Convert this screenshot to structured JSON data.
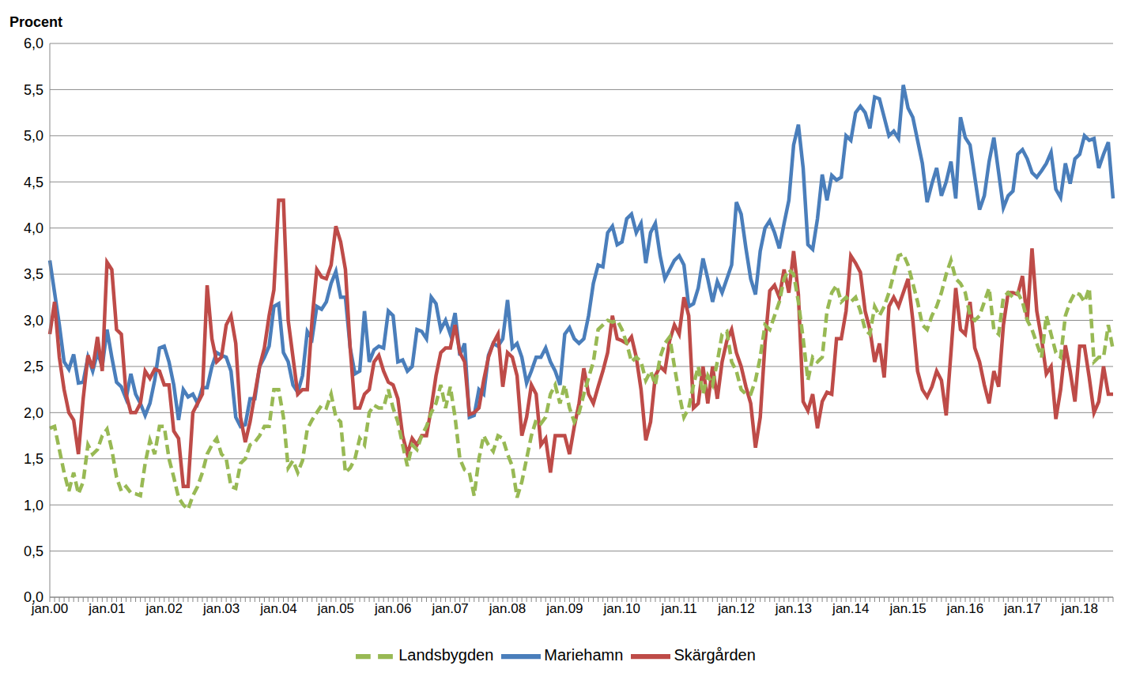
{
  "chart_data": {
    "type": "line",
    "y_label": "Procent",
    "categories": [
      "jan.00",
      null,
      null,
      null,
      null,
      null,
      null,
      null,
      null,
      null,
      null,
      null,
      "jan.01",
      null,
      null,
      null,
      null,
      null,
      null,
      null,
      null,
      null,
      null,
      null,
      "jan.02",
      null,
      null,
      null,
      null,
      null,
      null,
      null,
      null,
      null,
      null,
      null,
      "jan.03",
      null,
      null,
      null,
      null,
      null,
      null,
      null,
      null,
      null,
      null,
      null,
      "jan.04",
      null,
      null,
      null,
      null,
      null,
      null,
      null,
      null,
      null,
      null,
      null,
      "jan.05",
      null,
      null,
      null,
      null,
      null,
      null,
      null,
      null,
      null,
      null,
      null,
      "jan.06",
      null,
      null,
      null,
      null,
      null,
      null,
      null,
      null,
      null,
      null,
      null,
      "jan.07",
      null,
      null,
      null,
      null,
      null,
      null,
      null,
      null,
      null,
      null,
      null,
      "jan.08",
      null,
      null,
      null,
      null,
      null,
      null,
      null,
      null,
      null,
      null,
      null,
      "jan.09",
      null,
      null,
      null,
      null,
      null,
      null,
      null,
      null,
      null,
      null,
      null,
      "jan.10",
      null,
      null,
      null,
      null,
      null,
      null,
      null,
      null,
      null,
      null,
      null,
      "jan.11",
      null,
      null,
      null,
      null,
      null,
      null,
      null,
      null,
      null,
      null,
      null,
      "jan.12",
      null,
      null,
      null,
      null,
      null,
      null,
      null,
      null,
      null,
      null,
      null,
      "jan.13",
      null,
      null,
      null,
      null,
      null,
      null,
      null,
      null,
      null,
      null,
      null,
      "jan.14",
      null,
      null,
      null,
      null,
      null,
      null,
      null,
      null,
      null,
      null,
      null,
      "jan.15",
      null,
      null,
      null,
      null,
      null,
      null,
      null,
      null,
      null,
      null,
      null,
      "jan.16",
      null,
      null,
      null,
      null,
      null,
      null,
      null,
      null,
      null,
      null,
      null,
      "jan.17",
      null,
      null,
      null,
      null,
      null,
      null,
      null,
      null,
      null,
      null,
      null,
      "jan.18",
      null,
      null,
      null,
      null,
      null,
      null,
      null
    ],
    "series": [
      {
        "name": "Mariehamn",
        "color": "#4a7ebb",
        "line_style": "solid",
        "values": [
          3.65,
          3.3,
          2.95,
          2.55,
          2.47,
          2.63,
          2.32,
          2.33,
          2.6,
          2.45,
          2.65,
          2.5,
          2.9,
          2.6,
          2.33,
          2.28,
          2.15,
          2.42,
          2.2,
          2.1,
          1.97,
          2.1,
          2.35,
          2.7,
          2.72,
          2.55,
          2.3,
          1.92,
          2.25,
          2.17,
          2.2,
          2.1,
          2.27,
          2.27,
          2.5,
          2.65,
          2.62,
          2.6,
          2.45,
          1.95,
          1.85,
          1.87,
          2.15,
          2.15,
          2.5,
          2.6,
          2.72,
          3.15,
          3.18,
          2.65,
          2.55,
          2.3,
          2.22,
          2.4,
          2.88,
          2.8,
          3.15,
          3.12,
          3.2,
          3.4,
          3.53,
          3.25,
          3.25,
          2.7,
          2.42,
          2.45,
          3.1,
          2.55,
          2.68,
          2.72,
          2.7,
          3.1,
          3.05,
          2.55,
          2.57,
          2.45,
          2.5,
          2.9,
          2.88,
          2.8,
          3.25,
          3.18,
          2.9,
          3.0,
          2.85,
          3.08,
          2.62,
          2.75,
          1.95,
          1.97,
          2.25,
          2.2,
          2.62,
          2.75,
          2.72,
          2.8,
          3.22,
          2.7,
          2.75,
          2.6,
          2.32,
          2.45,
          2.6,
          2.6,
          2.7,
          2.55,
          2.45,
          2.3,
          2.85,
          2.92,
          2.8,
          2.75,
          2.8,
          3.05,
          3.4,
          3.6,
          3.58,
          3.95,
          4.02,
          3.82,
          3.85,
          4.1,
          4.15,
          3.95,
          4.05,
          3.62,
          3.95,
          4.05,
          3.7,
          3.45,
          3.55,
          3.65,
          3.7,
          3.6,
          3.15,
          3.18,
          3.35,
          3.67,
          3.45,
          3.2,
          3.42,
          3.3,
          3.45,
          3.6,
          4.28,
          4.15,
          3.78,
          3.45,
          3.28,
          3.75,
          4.0,
          4.08,
          3.95,
          3.78,
          4.05,
          4.3,
          4.9,
          5.12,
          4.65,
          3.82,
          3.77,
          4.1,
          4.58,
          4.3,
          4.57,
          4.52,
          4.55,
          5.0,
          4.95,
          5.25,
          5.32,
          5.25,
          5.08,
          5.42,
          5.4,
          5.2,
          5.0,
          5.05,
          4.97,
          5.55,
          5.3,
          5.2,
          4.95,
          4.7,
          4.28,
          4.48,
          4.65,
          4.35,
          4.5,
          4.72,
          4.32,
          5.2,
          4.98,
          4.9,
          4.55,
          4.2,
          4.35,
          4.72,
          4.98,
          4.6,
          4.22,
          4.35,
          4.4,
          4.8,
          4.85,
          4.75,
          4.6,
          4.55,
          4.62,
          4.7,
          4.82,
          4.42,
          4.33,
          4.7,
          4.48,
          4.75,
          4.8,
          5.0,
          4.95,
          4.97,
          4.65,
          4.8,
          4.93,
          4.32
        ]
      },
      {
        "name": "Skärgården",
        "color": "#be4b48",
        "line_style": "solid",
        "values": [
          2.85,
          3.2,
          2.6,
          2.25,
          2.0,
          1.92,
          1.55,
          2.15,
          2.62,
          2.48,
          2.82,
          2.45,
          3.63,
          3.55,
          2.9,
          2.85,
          2.2,
          2.0,
          2.0,
          2.1,
          2.45,
          2.37,
          2.47,
          2.45,
          2.3,
          2.3,
          1.8,
          1.72,
          1.2,
          1.2,
          2.0,
          2.1,
          2.2,
          3.38,
          2.8,
          2.55,
          2.6,
          2.95,
          3.05,
          2.75,
          1.95,
          1.68,
          1.9,
          2.2,
          2.5,
          2.7,
          3.05,
          3.33,
          4.3,
          4.3,
          3.0,
          2.6,
          2.2,
          2.25,
          2.25,
          3.0,
          3.55,
          3.47,
          3.45,
          3.6,
          4.02,
          3.85,
          3.55,
          2.7,
          2.05,
          2.05,
          2.2,
          2.25,
          2.55,
          2.62,
          2.45,
          2.33,
          2.3,
          2.15,
          1.75,
          1.55,
          1.72,
          1.65,
          1.75,
          1.75,
          2.05,
          2.4,
          2.65,
          2.7,
          2.7,
          2.95,
          2.65,
          2.55,
          1.98,
          2.0,
          2.05,
          2.35,
          2.6,
          2.75,
          2.85,
          2.28,
          2.65,
          2.6,
          2.4,
          1.75,
          1.95,
          2.3,
          2.2,
          1.65,
          1.72,
          1.35,
          1.75,
          1.75,
          1.75,
          1.55,
          1.85,
          2.1,
          2.48,
          2.2,
          2.1,
          2.28,
          2.45,
          2.65,
          3.05,
          2.8,
          2.78,
          2.75,
          2.82,
          2.6,
          2.25,
          1.7,
          1.9,
          2.4,
          2.5,
          2.45,
          2.78,
          2.95,
          2.85,
          3.25,
          3.05,
          2.05,
          2.1,
          2.5,
          2.1,
          2.5,
          2.15,
          2.55,
          2.78,
          2.9,
          2.65,
          2.5,
          2.28,
          2.1,
          1.62,
          1.95,
          2.75,
          3.32,
          3.38,
          3.25,
          3.55,
          3.3,
          3.75,
          3.28,
          2.12,
          2.02,
          2.2,
          1.83,
          2.12,
          2.22,
          2.2,
          2.8,
          2.8,
          3.1,
          3.7,
          3.62,
          3.52,
          3.1,
          2.9,
          2.55,
          2.75,
          2.38,
          3.15,
          3.25,
          3.15,
          3.3,
          3.45,
          3.0,
          2.45,
          2.25,
          2.17,
          2.28,
          2.45,
          2.35,
          1.97,
          2.65,
          3.35,
          2.9,
          2.85,
          3.2,
          2.7,
          2.55,
          2.3,
          2.1,
          2.45,
          2.28,
          2.95,
          3.3,
          3.3,
          3.28,
          3.48,
          3.0,
          3.78,
          3.1,
          2.8,
          2.42,
          2.5,
          1.93,
          2.25,
          2.73,
          2.45,
          2.12,
          2.72,
          2.72,
          2.38,
          2.0,
          2.12,
          2.5,
          2.2,
          2.2
        ]
      },
      {
        "name": "Landsbygden",
        "color": "#98b954",
        "line_style": "dashed",
        "values": [
          1.83,
          1.85,
          1.6,
          1.35,
          1.15,
          1.35,
          1.12,
          1.25,
          1.65,
          1.55,
          1.6,
          1.75,
          1.82,
          1.6,
          1.3,
          1.15,
          1.2,
          1.13,
          1.12,
          1.1,
          1.45,
          1.7,
          1.55,
          1.85,
          1.85,
          1.5,
          1.3,
          1.08,
          1.0,
          0.95,
          1.1,
          1.2,
          1.35,
          1.55,
          1.65,
          1.72,
          1.55,
          1.5,
          1.2,
          1.18,
          1.45,
          1.5,
          1.65,
          1.68,
          1.75,
          1.85,
          1.85,
          2.25,
          2.25,
          1.95,
          1.4,
          1.48,
          1.35,
          1.48,
          1.82,
          1.92,
          2.0,
          2.08,
          2.05,
          2.2,
          1.95,
          1.9,
          1.35,
          1.4,
          1.5,
          1.72,
          1.65,
          2.0,
          2.08,
          2.05,
          2.05,
          2.25,
          2.05,
          1.9,
          1.65,
          1.42,
          1.65,
          1.6,
          1.75,
          1.85,
          2.0,
          2.1,
          2.3,
          2.05,
          2.28,
          1.95,
          1.5,
          1.38,
          1.35,
          1.1,
          1.5,
          1.75,
          1.65,
          1.58,
          1.75,
          1.72,
          1.55,
          1.42,
          1.08,
          1.25,
          1.5,
          1.75,
          1.92,
          1.88,
          1.95,
          2.2,
          2.3,
          2.1,
          2.3,
          2.05,
          1.9,
          2.0,
          2.2,
          2.38,
          2.55,
          2.9,
          2.95,
          3.0,
          2.98,
          3.0,
          2.9,
          2.75,
          2.55,
          2.6,
          2.55,
          2.35,
          2.45,
          2.3,
          2.6,
          2.75,
          2.82,
          2.5,
          2.2,
          1.95,
          2.05,
          2.3,
          2.5,
          2.2,
          2.4,
          2.3,
          2.55,
          2.85,
          2.88,
          2.55,
          2.45,
          2.25,
          2.2,
          2.2,
          2.35,
          2.6,
          2.95,
          2.9,
          3.05,
          3.2,
          3.45,
          3.55,
          3.5,
          3.2,
          2.8,
          2.35,
          2.6,
          2.55,
          2.6,
          3.1,
          3.3,
          3.38,
          3.2,
          3.25,
          3.2,
          3.25,
          3.1,
          2.9,
          2.85,
          3.15,
          3.05,
          3.15,
          3.3,
          3.5,
          3.7,
          3.72,
          3.6,
          3.4,
          3.2,
          2.95,
          2.9,
          3.05,
          3.15,
          3.3,
          3.5,
          3.65,
          3.45,
          3.4,
          3.3,
          3.05,
          3.0,
          3.05,
          3.2,
          3.35,
          2.9,
          2.85,
          3.25,
          3.3,
          3.25,
          3.3,
          3.2,
          3.0,
          2.9,
          2.75,
          2.6,
          3.05,
          2.85,
          2.65,
          2.6,
          3.05,
          3.2,
          3.3,
          3.28,
          3.2,
          3.35,
          2.55,
          2.6,
          2.6,
          2.95,
          2.68
        ]
      }
    ],
    "ylim": [
      0,
      6
    ],
    "yticks": [
      {
        "value": 0,
        "label": "0,0"
      },
      {
        "value": 0.5,
        "label": "0,5"
      },
      {
        "value": 1,
        "label": "1,0"
      },
      {
        "value": 1.5,
        "label": "1,5"
      },
      {
        "value": 2,
        "label": "2,0"
      },
      {
        "value": 2.5,
        "label": "2,5"
      },
      {
        "value": 3,
        "label": "3,0"
      },
      {
        "value": 3.5,
        "label": "3,5"
      },
      {
        "value": 4,
        "label": "4,0"
      },
      {
        "value": 4.5,
        "label": "4,5"
      },
      {
        "value": 5,
        "label": "5,0"
      },
      {
        "value": 5.5,
        "label": "5,5"
      },
      {
        "value": 6,
        "label": "6,0"
      }
    ],
    "grid": true,
    "legend": "bottom"
  }
}
